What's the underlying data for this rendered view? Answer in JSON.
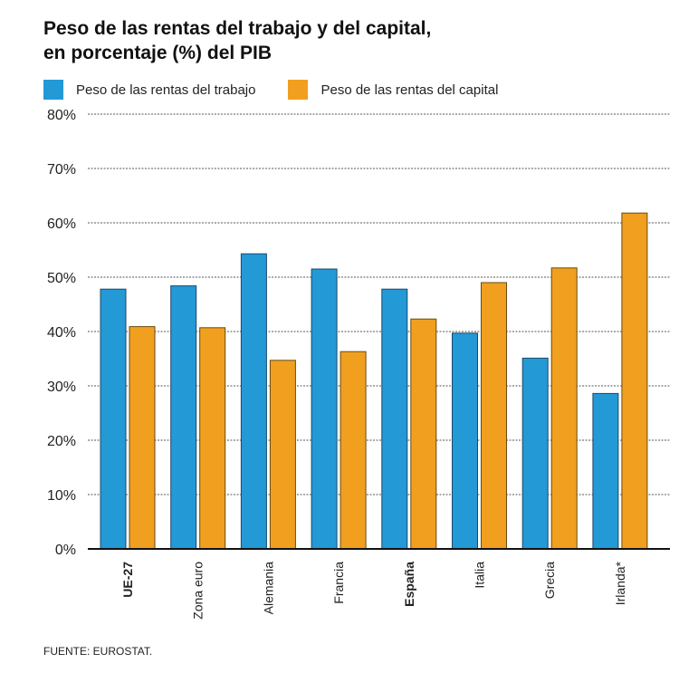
{
  "title_line1": "Peso de las rentas del trabajo y del capital,",
  "title_line2": "en porcentaje (%) del PIB",
  "source": "FUENTE: EUROSTAT.",
  "chart_data": {
    "type": "bar",
    "title": "Peso de las rentas del trabajo y del capital, en porcentaje (%) del PIB",
    "categories": [
      "UE-27",
      "Zona euro",
      "Alemania",
      "Francia",
      "España",
      "Italia",
      "Grecia",
      "Irlanda*"
    ],
    "bold_categories": [
      "UE-27",
      "España"
    ],
    "series": [
      {
        "name": "Peso de las rentas del trabajo",
        "color": "#2399d6",
        "values": [
          47.8,
          48.4,
          54.3,
          51.5,
          47.8,
          39.7,
          35.1,
          28.6
        ]
      },
      {
        "name": "Peso de las rentas del capital",
        "color": "#f0a01e",
        "values": [
          40.9,
          40.7,
          34.7,
          36.3,
          42.3,
          49.0,
          51.7,
          61.8
        ]
      }
    ],
    "ylim": [
      0,
      80
    ],
    "yticks": [
      "0%",
      "10%",
      "20%",
      "30%",
      "40%",
      "50%",
      "60%",
      "70%",
      "80%"
    ],
    "grid": true,
    "legend": "top-left"
  }
}
